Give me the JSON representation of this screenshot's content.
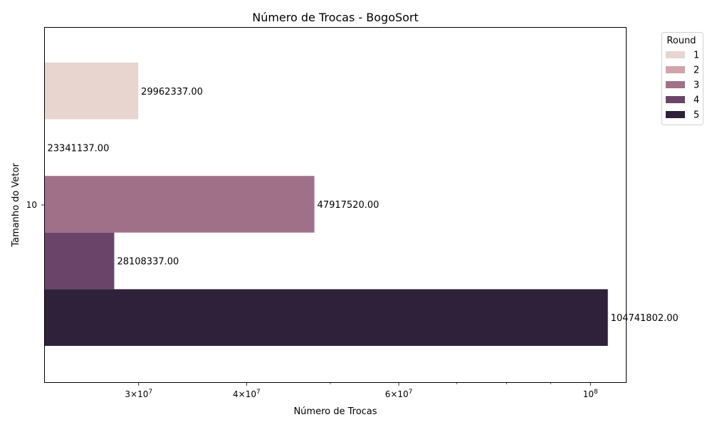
{
  "chart_data": {
    "type": "bar",
    "orientation": "horizontal",
    "title": "Número de Trocas - BogoSort",
    "xlabel": "Número de Trocas",
    "ylabel": "Tamanho do Vetor",
    "xscale": "log",
    "xlim": [
      23341137,
      110000000
    ],
    "categories": [
      "10"
    ],
    "x_ticks": [
      {
        "value": 30000000,
        "mantissa": "3",
        "exp": "7"
      },
      {
        "value": 40000000,
        "mantissa": "4",
        "exp": "7"
      },
      {
        "value": 60000000,
        "mantissa": "6",
        "exp": "7"
      },
      {
        "value": 100000000,
        "mantissa": "",
        "exp": "8"
      }
    ],
    "x_minor_ticks": [
      50000000,
      70000000,
      80000000,
      90000000
    ],
    "legend": {
      "title": "Round",
      "placement": "outside top-right"
    },
    "series": [
      {
        "name": "1",
        "values": [
          29962337.0
        ],
        "label": "29962337.00",
        "color": "#e8d5d0"
      },
      {
        "name": "2",
        "values": [
          23341137.0
        ],
        "label": "23341137.00",
        "color": "#d4a2aa"
      },
      {
        "name": "3",
        "values": [
          47917520.0
        ],
        "label": "47917520.00",
        "color": "#a07089"
      },
      {
        "name": "4",
        "values": [
          28108337.0
        ],
        "label": "28108337.00",
        "color": "#6a4569"
      },
      {
        "name": "5",
        "values": [
          104741802.0
        ],
        "label": "104741802.00",
        "color": "#2f213a"
      }
    ]
  }
}
